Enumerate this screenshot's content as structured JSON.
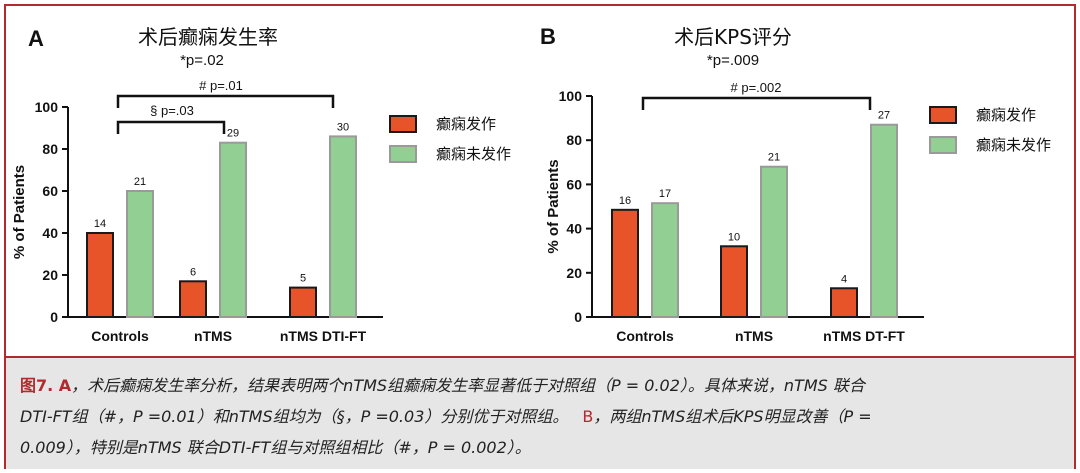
{
  "panels": [
    {
      "letter": "A",
      "title": "术后癫痫发生率",
      "stat": "*p=.02",
      "legend": [
        "癫痫发作",
        "癫痫未发作"
      ],
      "brackets": [
        {
          "label": "# p=.01"
        },
        {
          "label": "§ p=.03"
        }
      ]
    },
    {
      "letter": "B",
      "title": "术后KPS评分",
      "stat": "*p=.009",
      "legend": [
        "癫痫发作",
        "癫痫未发作"
      ],
      "brackets": [
        {
          "label": "# p=.002"
        }
      ]
    }
  ],
  "chart_data": [
    {
      "type": "bar",
      "title": "术后癫痫发生率",
      "ylabel": "% of Patients",
      "xlabel": "",
      "ylim": [
        0,
        100
      ],
      "yticks": [
        "0",
        "20",
        "40",
        "60",
        "80",
        "100"
      ],
      "categories": [
        "Controls",
        "nTMS",
        "nTMS DTI-FT"
      ],
      "series": [
        {
          "name": "癫痫发作",
          "color": "#e8542a",
          "values": [
            40,
            17,
            14
          ],
          "labels": [
            "14",
            "6",
            "5"
          ]
        },
        {
          "name": "癫痫未发作",
          "color": "#92cf92",
          "values": [
            60,
            83,
            86
          ],
          "labels": [
            "21",
            "29",
            "30"
          ]
        }
      ],
      "grid": false,
      "legend_position": "right"
    },
    {
      "type": "bar",
      "title": "术后KPS评分",
      "ylabel": "% of Patients",
      "xlabel": "",
      "ylim": [
        0,
        100
      ],
      "yticks": [
        "0",
        "20",
        "40",
        "60",
        "80",
        "100"
      ],
      "categories": [
        "Controls",
        "nTMS",
        "nTMS DT-FT"
      ],
      "series": [
        {
          "name": "癫痫发作",
          "color": "#e8542a",
          "values": [
            48.5,
            32,
            13
          ],
          "labels": [
            "16",
            "10",
            "4"
          ]
        },
        {
          "name": "癫痫未发作",
          "color": "#92cf92",
          "values": [
            51.5,
            68,
            87
          ],
          "labels": [
            "17",
            "21",
            "27"
          ]
        }
      ],
      "grid": false,
      "legend_position": "right"
    }
  ],
  "caption": {
    "line1_fig": "图7. A",
    "line1": "，术后癫痫发生率分析，结果表明两个nTMS组癫痫发生率显著低于对照组（P = 0.02）。具体来说，nTMS 联合",
    "line2a": "DTI-FT组（#，P =0.01）和nTMS组均为（§，P =0.03）分别优于对照组。",
    "line2_b": "B",
    "line2b": "，两组nTMS组术后KPS明显改善（P =",
    "line3": "0.009），特别是nTMS 联合DTI-FT组与对照组相比（#，P = 0.002）。"
  }
}
